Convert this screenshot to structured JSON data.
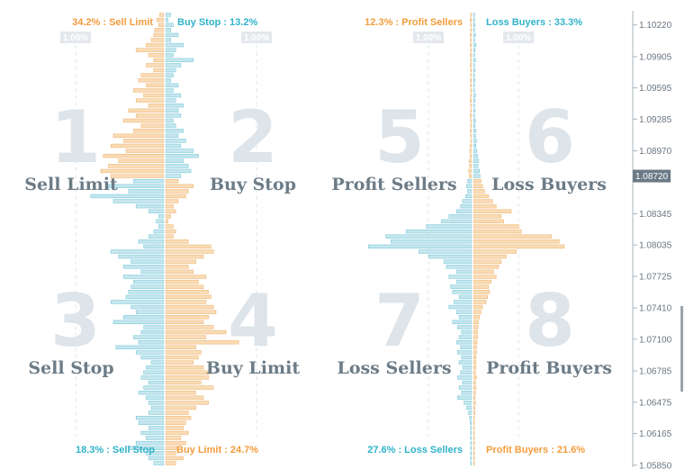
{
  "colors": {
    "orange": "#f39c3c",
    "blue": "#2fb3c9",
    "bar_orange": "#f9dcb6",
    "bar_orange_stroke": "#f0b878",
    "bar_blue": "#c6e6ee",
    "bar_blue_stroke": "#7ccbdb",
    "numeral": "#dde4ea",
    "axis": "#aab4bc"
  },
  "panels": [
    {
      "top_left": "34.2% : Sell Limit",
      "top_right": "Buy Stop : 13.2%",
      "bottom_left": "18.3% : Sell Stop",
      "bottom_right": "Buy Limit : 24.7%",
      "pct_left": "1.00%",
      "pct_right": "1.00%",
      "quadrants": [
        {
          "num": "1",
          "name": "Sell Limit"
        },
        {
          "num": "2",
          "name": "Buy Stop"
        },
        {
          "num": "3",
          "name": "Sell Stop"
        },
        {
          "num": "4",
          "name": "Buy Limit"
        }
      ]
    },
    {
      "top_left": "12.3% : Profit Sellers",
      "top_right": "Loss Buyers : 33.3%",
      "bottom_left": "27.6% : Loss Sellers",
      "bottom_right": "Profit Buyers : 21.6%",
      "pct_left": "1.00%",
      "pct_right": "1.00%",
      "quadrants": [
        {
          "num": "5",
          "name": "Profit Sellers"
        },
        {
          "num": "6",
          "name": "Loss Buyers"
        },
        {
          "num": "7",
          "name": "Loss Sellers"
        },
        {
          "num": "8",
          "name": "Profit Buyers"
        }
      ]
    }
  ],
  "chart_data": {
    "type": "bar",
    "orientation": "horizontal",
    "axis": {
      "position": "right",
      "ticks": [
        1.1022,
        1.09905,
        1.09595,
        1.09285,
        1.0897,
        1.08345,
        1.08035,
        1.07725,
        1.0741,
        1.071,
        1.06785,
        1.06475,
        1.06165,
        1.0585
      ],
      "tick_labels": [
        "1.10220",
        "1.09905",
        "1.09595",
        "1.09285",
        "1.08970",
        "1.08345",
        "1.08035",
        "1.07725",
        "1.07410",
        "1.07100",
        "1.06785",
        "1.06475",
        "1.06165",
        "1.05850"
      ],
      "current_price": "1.08720",
      "ylim": [
        1.0583,
        1.1036
      ]
    },
    "current_price": 1.0872,
    "order_book": {
      "prices": [
        1.1032,
        1.1027,
        1.1022,
        1.1017,
        1.1012,
        1.1007,
        1.1002,
        1.0997,
        1.0992,
        1.0987,
        1.0982,
        1.0977,
        1.0972,
        1.0967,
        1.0962,
        1.0957,
        1.0952,
        1.0947,
        1.0942,
        1.0937,
        1.0932,
        1.0927,
        1.0922,
        1.0917,
        1.0912,
        1.0907,
        1.0902,
        1.0897,
        1.0892,
        1.0887,
        1.0882,
        1.0877,
        1.0872,
        1.0867,
        1.0862,
        1.0857,
        1.0852,
        1.0847,
        1.0842,
        1.0837,
        1.0832,
        1.0827,
        1.0822,
        1.0817,
        1.0812,
        1.0807,
        1.0802,
        1.0797,
        1.0792,
        1.0787,
        1.0782,
        1.0777,
        1.0772,
        1.0767,
        1.0762,
        1.0757,
        1.0752,
        1.0747,
        1.0742,
        1.0737,
        1.0732,
        1.0727,
        1.0722,
        1.0717,
        1.0712,
        1.0707,
        1.0702,
        1.0697,
        1.0692,
        1.0687,
        1.0682,
        1.0677,
        1.0672,
        1.0667,
        1.0662,
        1.0657,
        1.0652,
        1.0647,
        1.0642,
        1.0637,
        1.0632,
        1.0627,
        1.0622,
        1.0617,
        1.0612,
        1.0607,
        1.0602,
        1.0597,
        1.0592,
        1.0587
      ],
      "orders_left_pct": [
        0.08,
        0.14,
        0.1,
        0.18,
        0.2,
        0.25,
        0.35,
        0.55,
        0.3,
        0.2,
        0.35,
        0.2,
        0.45,
        0.5,
        0.35,
        0.6,
        0.4,
        0.55,
        0.3,
        0.7,
        0.55,
        0.8,
        0.45,
        0.6,
        1.0,
        0.8,
        1.05,
        0.75,
        1.2,
        0.9,
        1.1,
        1.25,
        1.05,
        0.6,
        1.1,
        0.7,
        1.45,
        1.0,
        0.55,
        0.3,
        0.1,
        0.15,
        0.1,
        0.2,
        0.3,
        0.5,
        0.4,
        1.05,
        0.9,
        0.65,
        0.8,
        0.45,
        0.8,
        0.6,
        0.65,
        0.7,
        0.75,
        1.05,
        0.65,
        0.55,
        0.8,
        1.0,
        0.4,
        0.45,
        0.6,
        0.5,
        0.95,
        0.55,
        0.45,
        0.25,
        0.35,
        0.4,
        0.45,
        0.3,
        0.4,
        0.5,
        0.35,
        0.3,
        0.25,
        0.3,
        0.55,
        0.5,
        0.3,
        0.45,
        0.35,
        0.55,
        0.7,
        0.35,
        0.3,
        0.2
      ],
      "orders_right_pct": [
        0.1,
        0.05,
        0.15,
        0.1,
        0.25,
        0.1,
        0.35,
        0.2,
        0.15,
        0.55,
        0.3,
        0.2,
        0.15,
        0.1,
        0.25,
        0.15,
        0.3,
        0.2,
        0.35,
        0.25,
        0.3,
        0.15,
        0.2,
        0.35,
        0.25,
        0.4,
        0.3,
        0.55,
        0.65,
        0.35,
        0.45,
        0.5,
        0.3,
        0.25,
        0.55,
        0.45,
        0.4,
        0.25,
        0.15,
        0.2,
        0.1,
        0.05,
        0.15,
        0.2,
        0.15,
        0.45,
        0.9,
        0.95,
        0.75,
        0.6,
        0.45,
        0.55,
        0.8,
        0.65,
        0.75,
        0.85,
        0.9,
        0.8,
        0.95,
        1.0,
        0.85,
        0.75,
        0.95,
        1.2,
        0.8,
        1.45,
        0.6,
        0.7,
        0.65,
        0.55,
        0.75,
        0.9,
        0.85,
        0.7,
        0.95,
        0.6,
        0.75,
        0.85,
        0.6,
        0.45,
        0.5,
        0.4,
        0.35,
        0.45,
        0.3,
        0.4,
        0.25,
        0.2,
        0.35,
        0.2
      ]
    },
    "position_book": {
      "prices": [
        1.1032,
        1.1027,
        1.1022,
        1.1017,
        1.1012,
        1.1007,
        1.1002,
        1.0997,
        1.0992,
        1.0987,
        1.0982,
        1.0977,
        1.0972,
        1.0967,
        1.0962,
        1.0957,
        1.0952,
        1.0947,
        1.0942,
        1.0937,
        1.0932,
        1.0927,
        1.0922,
        1.0917,
        1.0912,
        1.0907,
        1.0902,
        1.0897,
        1.0892,
        1.0887,
        1.0882,
        1.0877,
        1.0872,
        1.0867,
        1.0862,
        1.0857,
        1.0852,
        1.0847,
        1.0842,
        1.0837,
        1.0832,
        1.0827,
        1.0822,
        1.0817,
        1.0812,
        1.0807,
        1.0802,
        1.0797,
        1.0792,
        1.0787,
        1.0782,
        1.0777,
        1.0772,
        1.0767,
        1.0762,
        1.0757,
        1.0752,
        1.0747,
        1.0742,
        1.0737,
        1.0732,
        1.0727,
        1.0722,
        1.0717,
        1.0712,
        1.0707,
        1.0702,
        1.0697,
        1.0692,
        1.0687,
        1.0682,
        1.0677,
        1.0672,
        1.0667,
        1.0662,
        1.0657,
        1.0652,
        1.0647,
        1.0642,
        1.0637,
        1.0632,
        1.0627,
        1.0622,
        1.0617,
        1.0612,
        1.0607,
        1.0602,
        1.0597,
        1.0592,
        1.0587
      ],
      "positions_left_pct": [
        0.02,
        0.03,
        0.02,
        0.02,
        0.03,
        0.02,
        0.03,
        0.02,
        0.03,
        0.02,
        0.03,
        0.02,
        0.02,
        0.03,
        0.02,
        0.02,
        0.02,
        0.03,
        0.02,
        0.02,
        0.03,
        0.02,
        0.02,
        0.03,
        0.02,
        0.02,
        0.03,
        0.04,
        0.03,
        0.05,
        0.04,
        0.06,
        0.05,
        0.08,
        0.1,
        0.08,
        0.12,
        0.18,
        0.22,
        0.3,
        0.45,
        0.6,
        0.9,
        1.3,
        1.7,
        1.6,
        2.05,
        1.05,
        0.85,
        0.55,
        0.5,
        0.3,
        0.45,
        0.3,
        0.42,
        0.38,
        0.25,
        0.35,
        0.45,
        0.3,
        0.25,
        0.38,
        0.28,
        0.2,
        0.25,
        0.3,
        0.22,
        0.28,
        0.2,
        0.25,
        0.18,
        0.22,
        0.28,
        0.18,
        0.25,
        0.2,
        0.28,
        0.15,
        0.1,
        0.06,
        0.04,
        0.03,
        0.02,
        0.02,
        0.02,
        0.02,
        0.02,
        0.02,
        0.02,
        0.02
      ],
      "positions_right_pct": [
        0.02,
        0.02,
        0.03,
        0.02,
        0.04,
        0.02,
        0.05,
        0.03,
        0.02,
        0.04,
        0.02,
        0.03,
        0.02,
        0.03,
        0.02,
        0.02,
        0.04,
        0.03,
        0.02,
        0.03,
        0.02,
        0.04,
        0.03,
        0.05,
        0.04,
        0.06,
        0.05,
        0.07,
        0.08,
        0.1,
        0.09,
        0.12,
        0.13,
        0.15,
        0.18,
        0.22,
        0.3,
        0.38,
        0.45,
        0.75,
        0.55,
        0.6,
        0.9,
        0.95,
        1.55,
        1.7,
        1.8,
        0.85,
        0.65,
        0.55,
        0.5,
        0.4,
        0.45,
        0.35,
        0.3,
        0.32,
        0.28,
        0.25,
        0.18,
        0.15,
        0.12,
        0.1,
        0.09,
        0.08,
        0.08,
        0.07,
        0.06,
        0.06,
        0.05,
        0.05,
        0.05,
        0.04,
        0.06,
        0.04,
        0.05,
        0.04,
        0.03,
        0.04,
        0.03,
        0.03,
        0.02,
        0.02,
        0.02,
        0.02,
        0.02,
        0.02,
        0.02,
        0.02,
        0.02,
        0.02
      ],
      "left_is_sellers": true
    }
  }
}
